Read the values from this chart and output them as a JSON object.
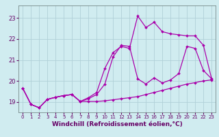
{
  "background_color": "#d0ecf0",
  "line_color": "#aa00aa",
  "grid_color": "#b0d0d8",
  "xlabel": "Windchill (Refroidissement éolien,°C)",
  "xlabel_fontsize": 6.5,
  "xlim": [
    -0.5,
    23.5
  ],
  "ylim": [
    18.5,
    23.6
  ],
  "yticks": [
    19,
    20,
    21,
    22,
    23
  ],
  "xticks": [
    0,
    1,
    2,
    3,
    4,
    5,
    6,
    7,
    8,
    9,
    10,
    11,
    12,
    13,
    14,
    15,
    16,
    17,
    18,
    19,
    20,
    21,
    22,
    23
  ],
  "line1_y": [
    19.65,
    18.88,
    18.72,
    19.12,
    19.22,
    19.3,
    19.35,
    19.02,
    19.02,
    19.02,
    19.05,
    19.1,
    19.15,
    19.2,
    19.25,
    19.35,
    19.45,
    19.55,
    19.65,
    19.75,
    19.85,
    19.92,
    20.0,
    20.05
  ],
  "line2_y": [
    19.65,
    18.88,
    18.72,
    19.12,
    19.22,
    19.3,
    19.35,
    19.02,
    19.15,
    19.35,
    19.85,
    21.15,
    21.7,
    21.65,
    20.1,
    19.85,
    20.15,
    19.9,
    20.05,
    20.35,
    21.65,
    21.55,
    20.5,
    20.1
  ],
  "line3_y": [
    19.65,
    18.88,
    18.72,
    19.12,
    19.22,
    19.3,
    19.35,
    19.02,
    19.2,
    19.45,
    20.6,
    21.35,
    21.65,
    21.55,
    23.1,
    22.55,
    22.8,
    22.35,
    22.25,
    22.2,
    22.15,
    22.15,
    21.7,
    20.1
  ]
}
